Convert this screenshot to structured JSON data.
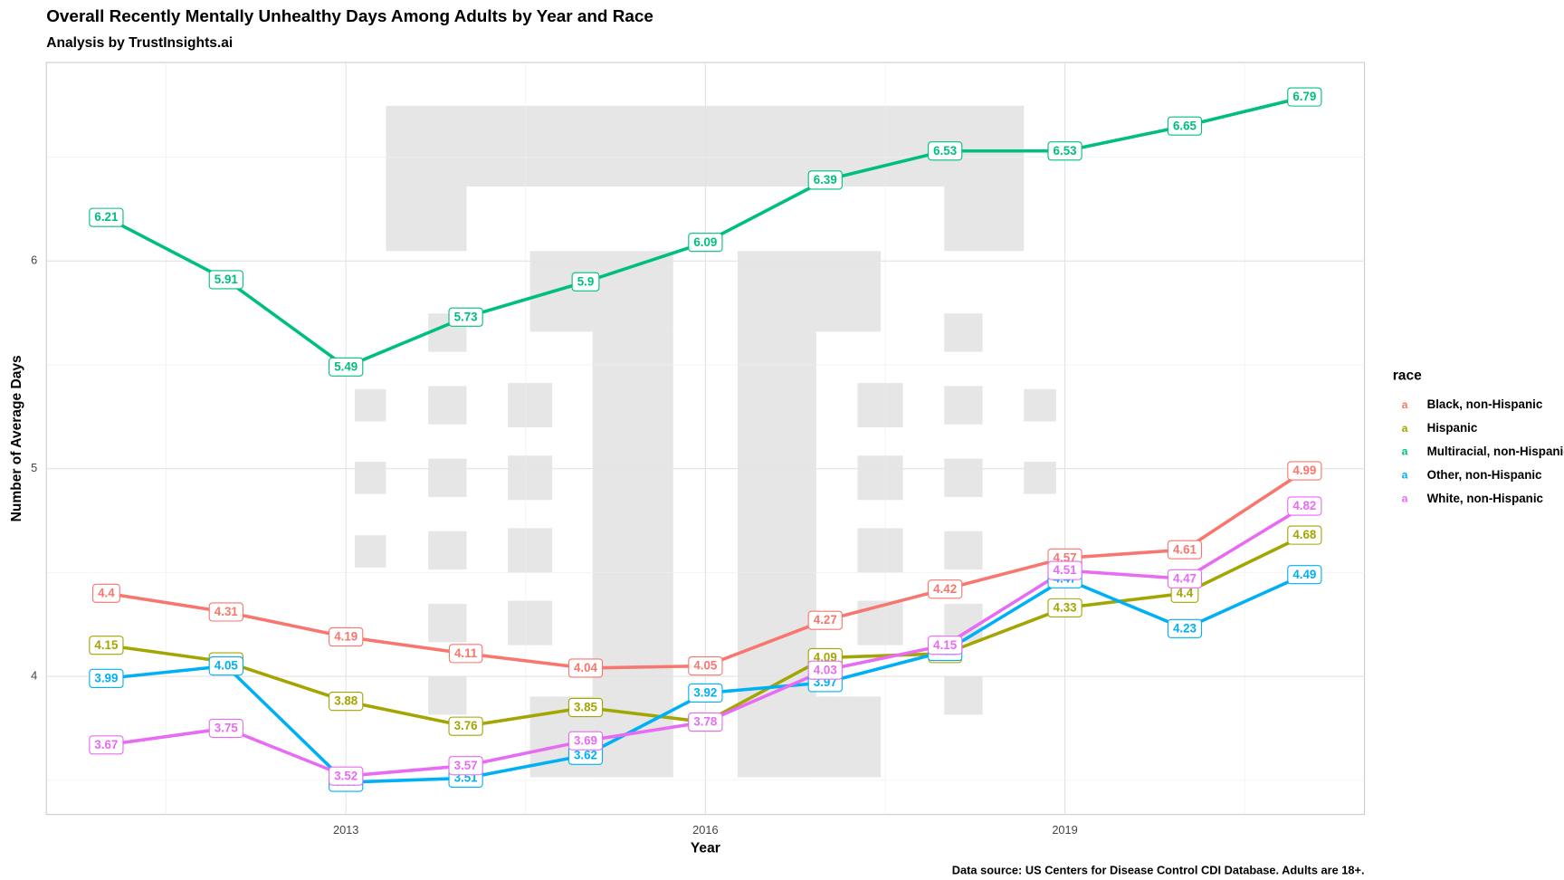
{
  "chart_data": {
    "type": "line",
    "title": "Overall Recently Mentally Unhealthy Days Among Adults by Year and Race",
    "subtitle": "Analysis by TrustInsights.ai",
    "x_label": "Year",
    "y_label": "Number of Average Days",
    "caption": "Data source: US Centers for Disease Control CDI Database. Adults are 18+.",
    "legend_title": "race",
    "legend_key": "a",
    "legend_position": "right",
    "grid": true,
    "x": [
      2011,
      2012,
      2013,
      2014,
      2015,
      2016,
      2017,
      2018,
      2019,
      2020,
      2021
    ],
    "xlim": [
      2010.5,
      2021.5
    ],
    "xticks": [
      2013,
      2016,
      2019
    ],
    "ylim": [
      3.335,
      6.956
    ],
    "yticks": [
      4,
      5,
      6
    ],
    "series": [
      {
        "name": "Black, non-Hispanic",
        "color": "#F8766D",
        "values": [
          4.4,
          4.31,
          4.19,
          4.11,
          4.04,
          4.05,
          4.27,
          4.42,
          4.57,
          4.61,
          4.99
        ]
      },
      {
        "name": "Hispanic",
        "color": "#A3A500",
        "values": [
          4.15,
          4.07,
          3.88,
          3.76,
          3.85,
          3.78,
          4.09,
          4.11,
          4.33,
          4.4,
          4.68
        ]
      },
      {
        "name": "Multiracial, non-Hispanic",
        "color": "#00BF7D",
        "values": [
          6.21,
          5.91,
          5.49,
          5.73,
          5.9,
          6.09,
          6.39,
          6.53,
          6.53,
          6.65,
          6.79
        ]
      },
      {
        "name": "Other, non-Hispanic",
        "color": "#00B0F6",
        "values": [
          3.99,
          4.05,
          3.49,
          3.51,
          3.62,
          3.92,
          3.97,
          4.12,
          4.47,
          4.23,
          4.49
        ]
      },
      {
        "name": "White, non-Hispanic",
        "color": "#E76BF3",
        "values": [
          3.67,
          3.75,
          3.52,
          3.57,
          3.69,
          3.78,
          4.03,
          4.15,
          4.51,
          4.47,
          4.82
        ]
      }
    ]
  }
}
